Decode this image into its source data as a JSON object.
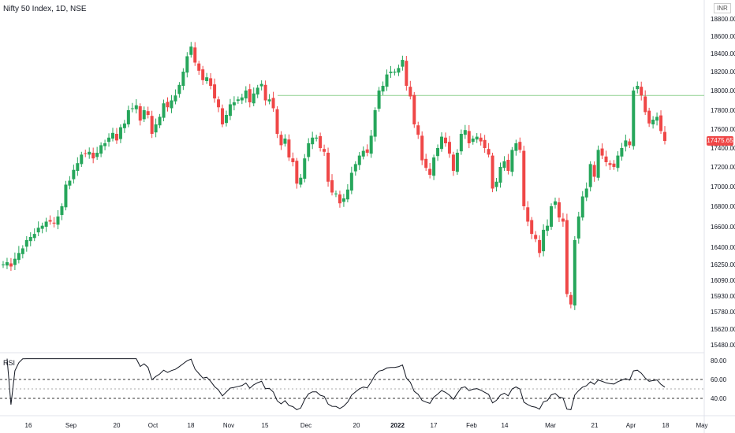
{
  "header": {
    "title": "Nifty 50 Index, 1D, NSE",
    "currency": "INR"
  },
  "price_axis": [
    "18800.00",
    "18600.00",
    "18400.00",
    "18200.00",
    "18000.00",
    "17800.00",
    "17600.00",
    "17400.00",
    "17200.00",
    "17000.00",
    "16800.00",
    "16600.00",
    "16400.00",
    "16250.00",
    "16090.00",
    "15930.00",
    "15780.00",
    "15620.00",
    "15480.00"
  ],
  "current_price": "17475.65",
  "resistance_level": 17950,
  "rsi": {
    "label": "RSI",
    "axis": [
      "80.00",
      "60.00",
      "40.00"
    ],
    "upper": 60,
    "mid": 50,
    "lower": 40
  },
  "time_axis": [
    "16",
    "Sep",
    "20",
    "Oct",
    "18",
    "Nov",
    "15",
    "Dec",
    "20",
    "2022",
    "17",
    "Feb",
    "14",
    "Mar",
    "21",
    "Apr",
    "18",
    "May"
  ],
  "colors": {
    "up": "#26a65b",
    "down": "#ef4747",
    "rsi_line": "#131722",
    "resistance": "#8fd18f"
  },
  "chart_data": {
    "type": "candlestick",
    "title": "Nifty 50 Index, 1D, NSE",
    "ylim": [
      15480,
      18800
    ],
    "close": [
      16250,
      16270,
      16230,
      16300,
      16350,
      16390,
      16470,
      16500,
      16530,
      16590,
      16610,
      16650,
      16650,
      16630,
      16700,
      16800,
      17020,
      17060,
      17170,
      17240,
      17330,
      17340,
      17360,
      17290,
      17350,
      17430,
      17450,
      17510,
      17560,
      17480,
      17620,
      17660,
      17800,
      17820,
      17850,
      17690,
      17800,
      17750,
      17550,
      17650,
      17730,
      17870,
      17830,
      17900,
      17950,
      18060,
      18200,
      18370,
      18480,
      18300,
      18210,
      18110,
      18140,
      18050,
      17920,
      17830,
      17650,
      17750,
      17860,
      17880,
      17910,
      17930,
      18000,
      17880,
      17970,
      18030,
      18070,
      17900,
      17910,
      17820,
      17550,
      17430,
      17500,
      17300,
      17250,
      17030,
      17090,
      17290,
      17450,
      17510,
      17510,
      17400,
      17360,
      17050,
      16940,
      16930,
      16830,
      16880,
      16970,
      17140,
      17230,
      17320,
      17370,
      17350,
      17530,
      17800,
      18000,
      18050,
      18170,
      18200,
      18200,
      18240,
      18330,
      18050,
      17940,
      17650,
      17540,
      17270,
      17190,
      17120,
      17300,
      17400,
      17520,
      17450,
      17340,
      17160,
      17350,
      17550,
      17590,
      17450,
      17500,
      17520,
      17470,
      17400,
      17330,
      16980,
      17050,
      17200,
      17260,
      17160,
      17380,
      17450,
      17380,
      16800,
      16650,
      16530,
      16480,
      16350,
      16570,
      16610,
      16800,
      16850,
      16690,
      16650,
      15950,
      15850,
      16470,
      16700,
      16900,
      16980,
      17230,
      17100,
      17380,
      17320,
      17250,
      17220,
      17200,
      17320,
      17400,
      17480,
      17430,
      18000,
      18050,
      17950,
      17780,
      17660,
      17700,
      17730,
      17580,
      17475
    ]
  }
}
